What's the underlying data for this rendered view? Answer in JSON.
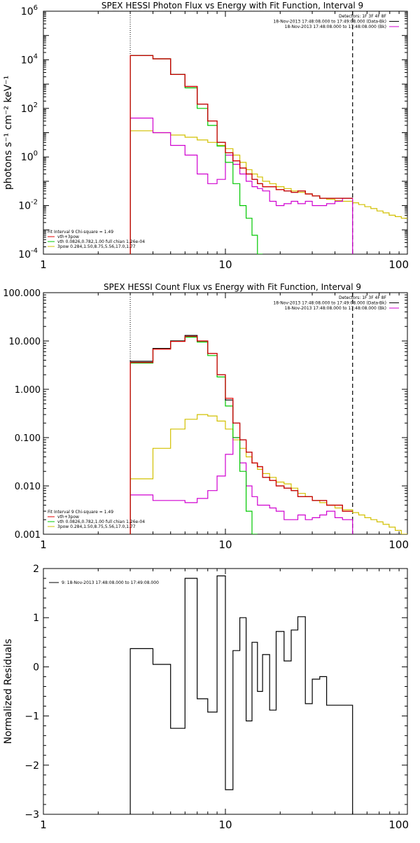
{
  "colors": {
    "black": "#000000",
    "red": "#e00000",
    "green": "#00c800",
    "magenta": "#d000d0",
    "yellow": "#d2c000",
    "orange": "#ff8c00"
  },
  "chart_data": [
    {
      "type": "line",
      "step": true,
      "title": "SPEX HESSI Photon Flux vs Energy with Fit Function, Interval 9",
      "ylabel": "photons s⁻¹ cm⁻² keV⁻¹",
      "xlabel": "",
      "xscale": "log",
      "yscale": "log",
      "xlim": [
        1,
        100
      ],
      "ylim": [
        0.0001,
        1000000
      ],
      "x_ticks": [
        "1",
        "10",
        "100"
      ],
      "y_ticks": [
        {
          "base": "10",
          "exp": "-4"
        },
        {
          "base": "10",
          "exp": "-2"
        },
        {
          "base": "10",
          "exp": "0"
        },
        {
          "base": "10",
          "exp": "2"
        },
        {
          "base": "10",
          "exp": "4"
        },
        {
          "base": "10",
          "exp": "6"
        }
      ],
      "legend_top_right": [
        "Detectors: 1F 3F 4F 8F",
        "18-Nov-2013 17:48:08.000 to 17:49:08.000 (Data-Bk)",
        "18-Nov-2013 17:48:08.000 to 17:48:08.000 (Bk)"
      ],
      "legend_bottom_left": [
        "Fit Interval 9   Chi-square = 1.49",
        "vth+3pow",
        "vth 0.0826,0.782,1.00  full chian 1.26e-04",
        "3pow 0.284,1.50,8.75,5.56,17.0,1.77"
      ],
      "vlines": [
        3,
        50
      ],
      "edges": [
        3,
        4,
        5,
        6,
        7,
        8,
        9,
        10,
        11,
        12,
        13,
        14,
        15,
        16,
        17.5,
        19,
        21,
        23,
        25,
        27.5,
        30,
        33,
        36,
        40,
        44,
        50
      ],
      "series": [
        {
          "color": "black",
          "values": [
            15000,
            11000,
            2500,
            800,
            150,
            30,
            4,
            1.5,
            0.7,
            0.35,
            0.2,
            0.12,
            0.08,
            0.06,
            0.06,
            0.045,
            0.04,
            0.035,
            0.04,
            0.03,
            0.025,
            0.02,
            0.02,
            0.02,
            0.02
          ]
        },
        {
          "color": "red",
          "values": [
            15000,
            11000,
            2500,
            800,
            150,
            30,
            4,
            1.5,
            0.7,
            0.35,
            0.2,
            0.12,
            0.08,
            0.06,
            0.06,
            0.045,
            0.04,
            0.035,
            0.04,
            0.03,
            0.025,
            0.02,
            0.02,
            0.02,
            0.02
          ]
        },
        {
          "color": "green",
          "values": [
            15000,
            11000,
            2500,
            700,
            100,
            20,
            2.8,
            0.6,
            0.08,
            0.01,
            0.003,
            0.0006,
            0.0001
          ]
        },
        {
          "color": "magenta",
          "values": [
            40,
            10,
            3,
            1.2,
            0.2,
            0.08,
            0.12,
            1.2,
            0.5,
            0.2,
            0.1,
            0.06,
            0.05,
            0.04,
            0.015,
            0.01,
            0.012,
            0.015,
            0.012,
            0.015,
            0.01,
            0.01,
            0.012,
            0.015,
            0.02
          ]
        },
        {
          "color": "yellow",
          "x_end": 100,
          "values": [
            12,
            10,
            8,
            6.5,
            5,
            4,
            3,
            2.2,
            1.2,
            0.6,
            0.3,
            0.2,
            0.15,
            0.1,
            0.08,
            0.06,
            0.05,
            0.04,
            0.035,
            0.03,
            0.025,
            0.02,
            0.018,
            0.016,
            0.015,
            0.013,
            0.011,
            0.009,
            0.0075,
            0.006,
            0.005,
            0.004,
            0.0035,
            0.003
          ]
        }
      ]
    },
    {
      "type": "line",
      "step": true,
      "title": "SPEX HESSI Count Flux vs Energy with Fit Function, Interval 9",
      "xlabel": "",
      "ylabel": "",
      "xscale": "log",
      "yscale": "log",
      "xlim": [
        1,
        100
      ],
      "ylim": [
        0.001,
        100
      ],
      "x_ticks": [
        "1",
        "10",
        "100"
      ],
      "y_ticks": [
        "0.001",
        "0.010",
        "0.100",
        "1.000",
        "10.000",
        "100.000"
      ],
      "legend_top_right": [
        "Detectors: 1F 3F 4F 8F",
        "18-Nov-2013 17:48:08.000 to 17:49:08.000 (Data-Bk)",
        "18-Nov-2013 17:48:08.000 to 17:48:08.000 (Bk)"
      ],
      "legend_bottom_left": [
        "Fit Interval 9   Chi-square = 1.49",
        "vth+3pow",
        "vth 0.0826,0.782,1.00  full chian 1.26e-04",
        "3pow 0.284,1.50,8.75,5.56,17.0,1.77"
      ],
      "vlines": [
        3,
        50
      ],
      "edges": [
        3,
        4,
        5,
        6,
        7,
        8,
        9,
        10,
        11,
        12,
        13,
        14,
        15,
        16,
        17.5,
        19,
        21,
        23,
        25,
        27.5,
        30,
        33,
        36,
        40,
        44,
        50
      ],
      "series": [
        {
          "color": "black",
          "values": [
            3.8,
            7,
            10,
            13,
            10,
            5.5,
            2,
            0.6,
            0.2,
            0.09,
            0.05,
            0.03,
            0.025,
            0.015,
            0.013,
            0.01,
            0.009,
            0.008,
            0.006,
            0.006,
            0.005,
            0.005,
            0.004,
            0.004,
            0.003
          ]
        },
        {
          "color": "red",
          "values": [
            3.6,
            6.8,
            9.8,
            12.5,
            10,
            5.5,
            2,
            0.65,
            0.2,
            0.09,
            0.05,
            0.03,
            0.025,
            0.015,
            0.013,
            0.01,
            0.009,
            0.008,
            0.006,
            0.006,
            0.005,
            0.005,
            0.004,
            0.004,
            0.003
          ]
        },
        {
          "color": "green",
          "values": [
            3.5,
            7,
            10,
            12,
            9.5,
            5,
            1.8,
            0.45,
            0.1,
            0.02,
            0.003,
            0.001
          ]
        },
        {
          "color": "magenta",
          "values": [
            0.0065,
            0.005,
            0.005,
            0.0045,
            0.0055,
            0.008,
            0.016,
            0.045,
            0.1,
            0.03,
            0.01,
            0.006,
            0.004,
            0.004,
            0.0035,
            0.003,
            0.002,
            0.002,
            0.0025,
            0.002,
            0.0022,
            0.0025,
            0.003,
            0.0022,
            0.002
          ]
        },
        {
          "color": "yellow",
          "x_end": 100,
          "values": [
            0.014,
            0.06,
            0.15,
            0.24,
            0.3,
            0.28,
            0.22,
            0.15,
            0.09,
            0.06,
            0.04,
            0.03,
            0.022,
            0.018,
            0.015,
            0.012,
            0.011,
            0.009,
            0.007,
            0.006,
            0.005,
            0.0045,
            0.004,
            0.0035,
            0.0032,
            0.0028,
            0.0025,
            0.0022,
            0.002,
            0.0018,
            0.0016,
            0.0014,
            0.0012,
            0.001
          ]
        }
      ]
    },
    {
      "type": "line",
      "step": true,
      "title": "",
      "xlabel": "",
      "ylabel": "Normalized Residuals",
      "xscale": "log",
      "yscale": "linear",
      "xlim": [
        1,
        100
      ],
      "ylim": [
        -3,
        2
      ],
      "x_ticks": [
        "1",
        "10",
        "100"
      ],
      "y_ticks": [
        "−3",
        "−2",
        "−1",
        "0",
        "1",
        "2"
      ],
      "legend_top_left": "9: 18-Nov-2013 17:48:08.000 to 17:49:08.000",
      "edges": [
        3,
        4,
        5,
        6,
        7,
        8,
        9,
        10,
        11,
        12,
        13,
        14,
        15,
        16,
        17.5,
        19,
        21,
        23,
        25,
        27.5,
        30,
        33,
        36,
        40,
        44,
        50
      ],
      "series": [
        {
          "color": "black",
          "values": [
            0.37,
            0.05,
            -1.25,
            1.8,
            -0.65,
            -0.92,
            1.85,
            -2.5,
            0.33,
            1.0,
            -1.1,
            0.5,
            -0.5,
            0.25,
            -0.88,
            0.72,
            0.12,
            0.75,
            1.02,
            -0.75,
            -0.25,
            -0.2,
            -0.78,
            -0.78,
            -0.78
          ]
        }
      ]
    }
  ]
}
